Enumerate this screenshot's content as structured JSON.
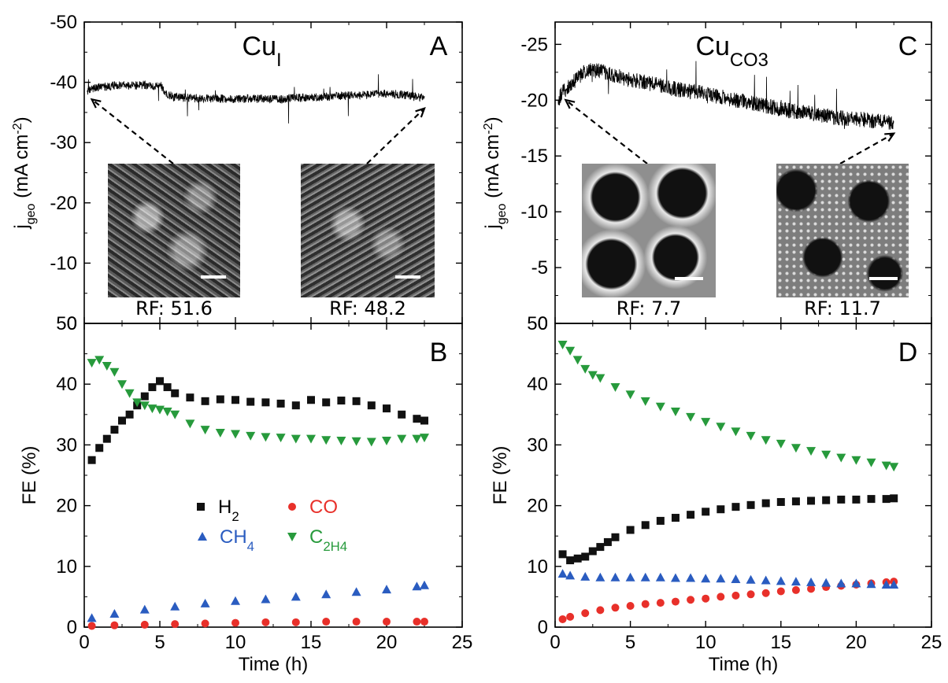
{
  "chart_data": [
    {
      "id": "A",
      "type": "line",
      "panel_letter": "A",
      "title": "Cu_I",
      "ylabel": "j_geo (mA cm^-2)",
      "ylim": [
        0,
        -50
      ],
      "yticks": [
        -50,
        -40,
        -30,
        -20,
        -10,
        0
      ],
      "xlim": [
        0,
        25
      ],
      "series": [
        {
          "values_x": [
            0.2,
            0.5,
            1,
            1.5,
            2,
            2.5,
            3,
            3.5,
            4,
            4.5,
            5,
            5.5,
            6,
            7,
            8,
            9,
            10,
            11,
            12,
            13,
            14,
            15,
            16,
            17,
            18,
            19,
            20,
            21,
            22,
            22.5
          ],
          "values_y": [
            -38.5,
            -39,
            -39.2,
            -39.3,
            -39.5,
            -39.6,
            -39.4,
            -39.5,
            -39.6,
            -39.3,
            -39.5,
            -38,
            -37.5,
            -37.4,
            -37.3,
            -37.3,
            -37.2,
            -37.3,
            -37.2,
            -37.2,
            -37.4,
            -37.5,
            -37.6,
            -37.7,
            -37.9,
            -38,
            -38.1,
            -38,
            -37.6,
            -37.5
          ]
        }
      ],
      "insets": [
        {
          "label": "RF: 51.6",
          "points_to_x": 0.5
        },
        {
          "label": "RF: 48.2",
          "points_to_x": 22.5
        }
      ]
    },
    {
      "id": "B",
      "type": "scatter",
      "panel_letter": "B",
      "ylabel": "FE (%)",
      "xlabel": "Time (h)",
      "xlim": [
        0,
        25
      ],
      "ylim": [
        0,
        50
      ],
      "xticks": [
        0,
        5,
        10,
        15,
        20,
        25
      ],
      "yticks": [
        0,
        10,
        20,
        30,
        40,
        50
      ],
      "legend": [
        "H2",
        "CO",
        "CH4",
        "C2H4"
      ],
      "series": [
        {
          "name": "H2",
          "color": "#111111",
          "marker": "square",
          "x": [
            0.5,
            1,
            1.5,
            2,
            2.5,
            3,
            3.5,
            4,
            4.5,
            5,
            5.5,
            6,
            7,
            8,
            9,
            10,
            11,
            12,
            13,
            14,
            15,
            16,
            17,
            18,
            19,
            20,
            21,
            22,
            22.5
          ],
          "y": [
            27.5,
            29.5,
            31,
            32.5,
            34,
            35,
            36.5,
            38,
            39.5,
            40.5,
            39.5,
            38.5,
            37.8,
            37.2,
            37.5,
            37.4,
            37.1,
            37,
            36.8,
            36.5,
            37.4,
            37,
            37.3,
            37.2,
            36.5,
            36,
            35,
            34.3,
            34
          ]
        },
        {
          "name": "CO",
          "color": "#e8302a",
          "marker": "circle",
          "x": [
            0.5,
            2,
            4,
            6,
            8,
            10,
            12,
            14,
            16,
            18,
            20,
            22,
            22.5
          ],
          "y": [
            0.2,
            0.3,
            0.4,
            0.5,
            0.6,
            0.7,
            0.8,
            0.8,
            0.9,
            0.9,
            0.9,
            0.9,
            0.9
          ]
        },
        {
          "name": "CH4",
          "color": "#2a5cc0",
          "marker": "triangle",
          "x": [
            0.5,
            2,
            4,
            6,
            8,
            10,
            12,
            14,
            16,
            18,
            20,
            22,
            22.5
          ],
          "y": [
            1.5,
            2.2,
            2.9,
            3.4,
            3.9,
            4.3,
            4.6,
            5,
            5.4,
            5.8,
            6.2,
            6.7,
            6.9
          ]
        },
        {
          "name": "C2H4",
          "color": "#279a3c",
          "marker": "triangle-down",
          "x": [
            0.5,
            1,
            1.5,
            2,
            2.5,
            3,
            3.5,
            4,
            4.5,
            5,
            5.5,
            6,
            7,
            8,
            9,
            10,
            11,
            12,
            13,
            14,
            15,
            16,
            17,
            18,
            19,
            20,
            21,
            22,
            22.5
          ],
          "y": [
            43.5,
            44,
            43,
            42,
            40,
            38.5,
            37,
            36.5,
            36,
            35.8,
            35.5,
            35,
            33.5,
            32.5,
            32,
            31.8,
            31.5,
            31.3,
            31.2,
            31,
            31,
            30.8,
            30.7,
            30.6,
            30.5,
            30.7,
            31,
            31,
            31.2
          ]
        }
      ]
    },
    {
      "id": "C",
      "type": "line",
      "panel_letter": "C",
      "title": "Cu_CO3",
      "ylabel": "j_geo (mA cm^-2)",
      "ylim": [
        0,
        -27
      ],
      "yticks": [
        -25,
        -20,
        -15,
        -10,
        -5,
        0
      ],
      "xlim": [
        0,
        25
      ],
      "series": [
        {
          "values_x": [
            0.2,
            0.4,
            0.7,
            1,
            1.5,
            2,
            2.5,
            3,
            4,
            5,
            6,
            7,
            8,
            9,
            10,
            11,
            12,
            13,
            14,
            15,
            16,
            17,
            18,
            19,
            20,
            21,
            22,
            22.5
          ],
          "values_y": [
            -19.8,
            -20.5,
            -21,
            -21.3,
            -22,
            -22.5,
            -22.7,
            -22.6,
            -22.2,
            -21.8,
            -21.6,
            -21.3,
            -21,
            -20.8,
            -20.6,
            -20.3,
            -20,
            -19.8,
            -19.5,
            -19.2,
            -19,
            -18.8,
            -18.6,
            -18.4,
            -18.3,
            -18.2,
            -18.1,
            -18
          ]
        }
      ],
      "insets": [
        {
          "label": "RF: 7.7",
          "points_to_x": 0.7
        },
        {
          "label": "RF: 11.7",
          "points_to_x": 22.5
        }
      ]
    },
    {
      "id": "D",
      "type": "scatter",
      "panel_letter": "D",
      "ylabel": "FE (%)",
      "xlabel": "Time (h)",
      "xlim": [
        0,
        25
      ],
      "ylim": [
        0,
        50
      ],
      "xticks": [
        0,
        5,
        10,
        15,
        20,
        25
      ],
      "yticks": [
        0,
        10,
        20,
        30,
        40,
        50
      ],
      "series": [
        {
          "name": "H2",
          "color": "#111111",
          "marker": "square",
          "x": [
            0.5,
            1,
            1.5,
            2,
            2.5,
            3,
            3.5,
            4,
            5,
            6,
            7,
            8,
            9,
            10,
            11,
            12,
            13,
            14,
            15,
            16,
            17,
            18,
            19,
            20,
            21,
            22,
            22.5
          ],
          "y": [
            12,
            11,
            11.3,
            11.6,
            12.5,
            13.2,
            14,
            14.8,
            16,
            16.8,
            17.5,
            18,
            18.5,
            19,
            19.4,
            19.8,
            20.1,
            20.4,
            20.6,
            20.7,
            20.8,
            20.9,
            21,
            21,
            21.1,
            21.1,
            21.2
          ]
        },
        {
          "name": "CO",
          "color": "#e8302a",
          "marker": "circle",
          "x": [
            0.5,
            1,
            2,
            3,
            4,
            5,
            6,
            7,
            8,
            9,
            10,
            11,
            12,
            13,
            14,
            15,
            16,
            17,
            18,
            19,
            20,
            21,
            22,
            22.5
          ],
          "y": [
            1.3,
            1.7,
            2.3,
            2.8,
            3.2,
            3.5,
            3.8,
            4,
            4.2,
            4.5,
            4.7,
            5,
            5.2,
            5.4,
            5.6,
            5.9,
            6.1,
            6.3,
            6.6,
            6.8,
            7,
            7.2,
            7.4,
            7.5
          ]
        },
        {
          "name": "CH4",
          "color": "#2a5cc0",
          "marker": "triangle",
          "x": [
            0.5,
            1,
            2,
            3,
            4,
            5,
            6,
            7,
            8,
            9,
            10,
            11,
            12,
            13,
            14,
            15,
            16,
            17,
            18,
            19,
            20,
            21,
            22,
            22.5
          ],
          "y": [
            8.8,
            8.5,
            8.3,
            8.2,
            8.2,
            8.2,
            8.2,
            8.2,
            8.1,
            8.1,
            8,
            8,
            7.9,
            7.8,
            7.7,
            7.6,
            7.5,
            7.4,
            7.3,
            7.2,
            7.2,
            7.1,
            7,
            7
          ]
        },
        {
          "name": "C2H4",
          "color": "#279a3c",
          "marker": "triangle-down",
          "x": [
            0.5,
            1,
            1.5,
            2,
            2.5,
            3,
            4,
            5,
            6,
            7,
            8,
            9,
            10,
            11,
            12,
            13,
            14,
            15,
            16,
            17,
            18,
            19,
            20,
            21,
            22,
            22.5
          ],
          "y": [
            46.5,
            45.5,
            44,
            42.5,
            41.5,
            41,
            39.5,
            38.3,
            37.2,
            36.3,
            35.5,
            34.6,
            33.8,
            33,
            32.2,
            31.5,
            30.8,
            30.2,
            29.5,
            29,
            28.4,
            27.9,
            27.5,
            27.1,
            26.6,
            26.4
          ]
        }
      ]
    }
  ]
}
